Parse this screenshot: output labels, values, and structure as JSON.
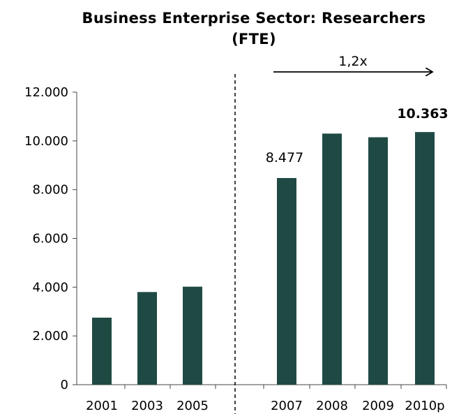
{
  "title_line1": "Business Enterprise Sector:  Researchers",
  "title_line2": "(FTE)",
  "colors": {
    "bar": "#1F4A44",
    "axis": "#444444",
    "text": "#000000"
  },
  "chart_data": {
    "type": "bar",
    "title": "Business Enterprise Sector:  Researchers (FTE)",
    "categories": [
      "2001",
      "2003",
      "2005",
      "2007",
      "2008",
      "2009",
      "2010p"
    ],
    "values": [
      2750,
      3800,
      4020,
      8477,
      10300,
      10150,
      10363
    ],
    "ylim": [
      0,
      12000
    ],
    "yticks": [
      0,
      2000,
      4000,
      6000,
      8000,
      10000,
      12000
    ],
    "ytick_labels": [
      "0",
      "2.000",
      "4.000",
      "6.000",
      "8.000",
      "10.000",
      "12.000"
    ],
    "xlabel": "",
    "ylabel": "",
    "grid": false,
    "legend": "none",
    "data_labels": [
      {
        "category": "2007",
        "text": "8.477",
        "bold": false
      },
      {
        "category": "2010p",
        "text": "10.363",
        "bold": true
      }
    ],
    "annotations": [
      {
        "type": "arrow",
        "text": "1,2x",
        "from": "2007",
        "to": "2010p"
      },
      {
        "type": "dashed-separator",
        "between": [
          "2005",
          "2007"
        ]
      }
    ]
  }
}
